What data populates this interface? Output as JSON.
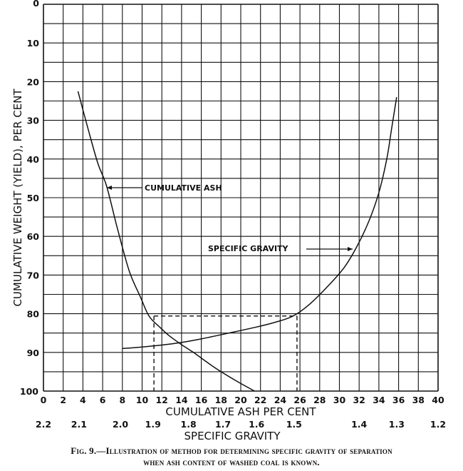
{
  "chart_data": {
    "type": "line",
    "caption_line1": "Fig. 9.—Illustration of method for determining specific gravity of separation",
    "caption_line2": "when ash content of washed coal is known.",
    "xlabel": "CUMULATIVE ASH PER CENT",
    "x2label": "SPECIFIC GRAVITY",
    "ylabel": "CUMULATIVE WEIGHT (YIELD), PER CENT",
    "xlim": [
      0,
      40
    ],
    "ylim": [
      0,
      100
    ],
    "y_inverted": true,
    "grid": true,
    "x_ticks": [
      "0",
      "2",
      "4",
      "6",
      "8",
      "10",
      "12",
      "14",
      "16",
      "18",
      "20",
      "22",
      "24",
      "26",
      "28",
      "30",
      "32",
      "34",
      "36",
      "38",
      "40"
    ],
    "y_ticks": [
      "0",
      "10",
      "20",
      "30",
      "40",
      "50",
      "60",
      "70",
      "80",
      "90",
      "100"
    ],
    "x2_ticks": [
      {
        "label": "2.2",
        "at_ash": 0
      },
      {
        "label": "2.1",
        "at_ash": 3.6
      },
      {
        "label": "2.0",
        "at_ash": 7.8
      },
      {
        "label": "1.9",
        "at_ash": 11.1
      },
      {
        "label": "1.8",
        "at_ash": 14.7
      },
      {
        "label": "1.7",
        "at_ash": 18.2
      },
      {
        "label": "1.6",
        "at_ash": 21.6
      },
      {
        "label": "1.5",
        "at_ash": 25.4
      },
      {
        "label": "1.4",
        "at_ash": 32
      },
      {
        "label": "1.3",
        "at_ash": 35.8
      },
      {
        "label": "1.2",
        "at_ash": 40
      }
    ],
    "series": [
      {
        "name": "CUMULATIVE ASH",
        "x": [
          3.5,
          4.5,
          5.5,
          6.4,
          7.5,
          8.7,
          9.8,
          10.7,
          11.8,
          12.7,
          14,
          15.2,
          17.4,
          19.5,
          21.4
        ],
        "y": [
          22.5,
          32,
          41,
          47,
          58,
          69,
          75.5,
          80.6,
          83.5,
          85.6,
          88,
          90,
          94,
          97.3,
          100
        ]
      },
      {
        "name": "SPECIFIC GRAVITY",
        "x": [
          8,
          10,
          12,
          13.8,
          16,
          18.8,
          21.5,
          23.5,
          25.3,
          27,
          28.9,
          30.5,
          31.8,
          33,
          34,
          34.8,
          35.3,
          35.8
        ],
        "y": [
          89,
          88.6,
          88.1,
          87.5,
          86.5,
          85,
          83.5,
          82.2,
          80.6,
          77.5,
          72.7,
          68,
          62.5,
          56,
          48.7,
          40,
          32,
          24
        ]
      }
    ],
    "guide": {
      "y": 80.6,
      "x_ash": 11.2,
      "x_sg": 25.7
    },
    "annotations": [
      {
        "text": "CUMULATIVE ASH",
        "arrow": "left"
      },
      {
        "text": "SPECIFIC GRAVITY",
        "arrow": "right"
      }
    ]
  }
}
